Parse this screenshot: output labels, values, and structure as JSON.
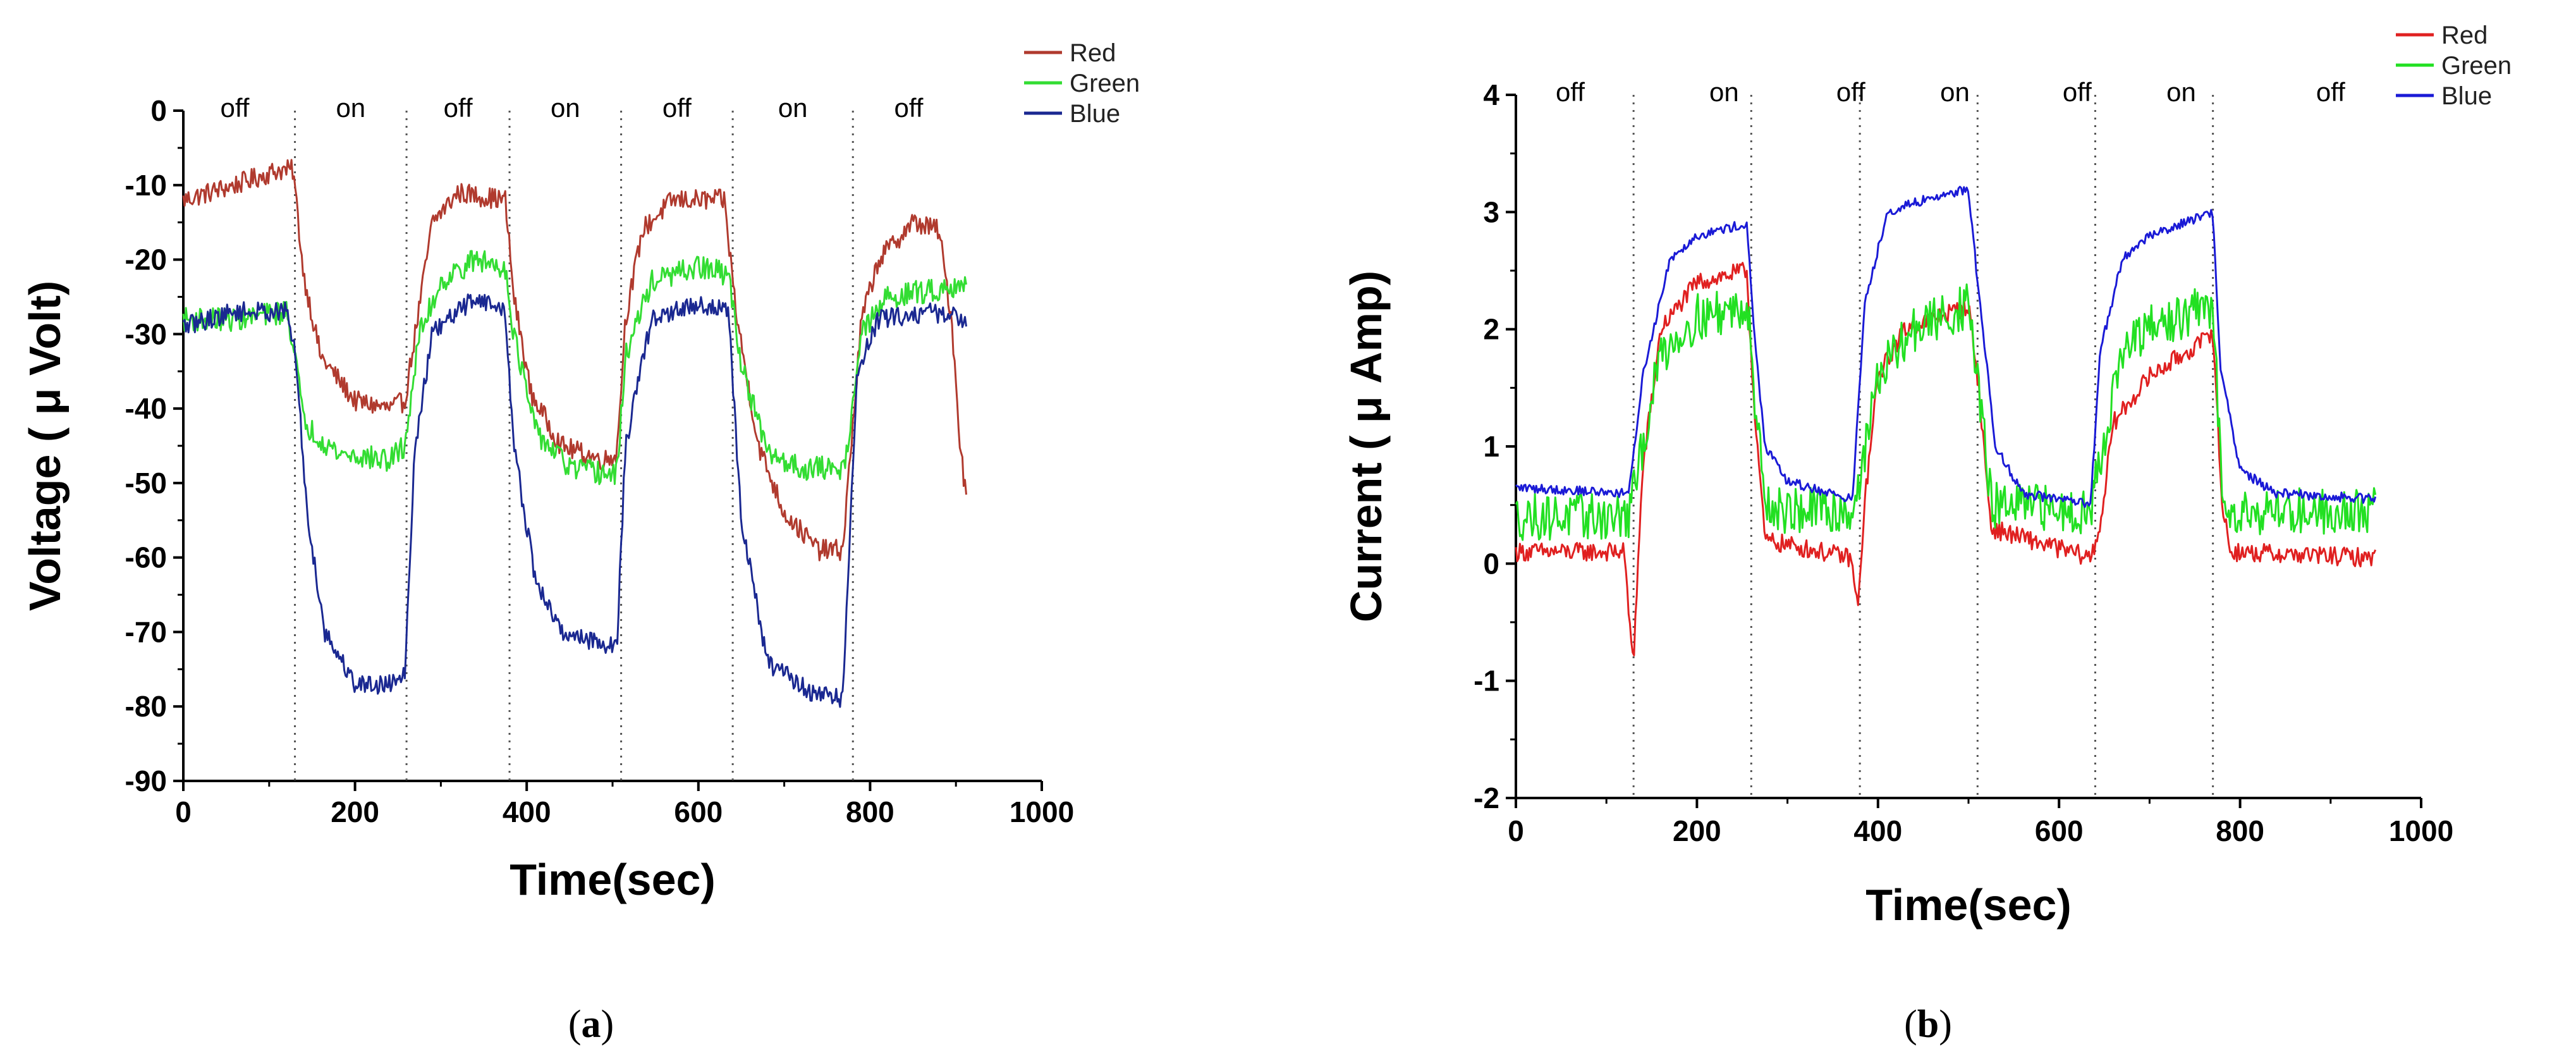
{
  "chart_data": [
    {
      "id": "a",
      "type": "line",
      "caption_letter": "a",
      "xlabel": "Time(sec)",
      "ylabel": "Voltage ( μ Volt)",
      "xlim": [
        0,
        1000
      ],
      "ylim": [
        -90,
        0
      ],
      "xticks": [
        0,
        200,
        400,
        600,
        800,
        1000
      ],
      "yticks": [
        0,
        -10,
        -20,
        -30,
        -40,
        -50,
        -60,
        -70,
        -80,
        -90
      ],
      "state_boundaries": [
        130,
        260,
        380,
        510,
        640,
        780
      ],
      "state_labels": [
        {
          "x": 60,
          "text": "off"
        },
        {
          "x": 195,
          "text": "on"
        },
        {
          "x": 320,
          "text": "off"
        },
        {
          "x": 445,
          "text": "on"
        },
        {
          "x": 575,
          "text": "off"
        },
        {
          "x": 710,
          "text": "on"
        },
        {
          "x": 845,
          "text": "off"
        }
      ],
      "series": [
        {
          "name": "Red",
          "color": "#b03a2e",
          "noise": 1.4,
          "points": [
            [
              0,
              -12
            ],
            [
              60,
              -10
            ],
            [
              110,
              -8
            ],
            [
              128,
              -8
            ],
            [
              140,
              -22
            ],
            [
              160,
              -33
            ],
            [
              200,
              -39
            ],
            [
              240,
              -40
            ],
            [
              258,
              -39
            ],
            [
              270,
              -30
            ],
            [
              290,
              -15
            ],
            [
              320,
              -11
            ],
            [
              375,
              -12
            ],
            [
              385,
              -25
            ],
            [
              405,
              -38
            ],
            [
              440,
              -45
            ],
            [
              490,
              -47
            ],
            [
              505,
              -46
            ],
            [
              515,
              -28
            ],
            [
              535,
              -16
            ],
            [
              570,
              -12
            ],
            [
              630,
              -12
            ],
            [
              645,
              -28
            ],
            [
              670,
              -45
            ],
            [
              700,
              -54
            ],
            [
              740,
              -59
            ],
            [
              768,
              -59
            ],
            [
              790,
              -28
            ],
            [
              810,
              -20
            ],
            [
              850,
              -15
            ],
            [
              880,
              -16
            ],
            [
              895,
              -28
            ],
            [
              905,
              -45
            ],
            [
              912,
              -52
            ]
          ]
        },
        {
          "name": "Green",
          "color": "#33dd33",
          "noise": 1.6,
          "points": [
            [
              0,
              -28
            ],
            [
              60,
              -28
            ],
            [
              120,
              -27
            ],
            [
              130,
              -32
            ],
            [
              140,
              -42
            ],
            [
              180,
              -46
            ],
            [
              240,
              -47
            ],
            [
              258,
              -45
            ],
            [
              275,
              -30
            ],
            [
              300,
              -23
            ],
            [
              340,
              -20
            ],
            [
              375,
              -21
            ],
            [
              385,
              -30
            ],
            [
              410,
              -43
            ],
            [
              450,
              -48
            ],
            [
              505,
              -49
            ],
            [
              515,
              -33
            ],
            [
              545,
              -23
            ],
            [
              600,
              -21
            ],
            [
              635,
              -22
            ],
            [
              650,
              -34
            ],
            [
              680,
              -46
            ],
            [
              720,
              -48
            ],
            [
              770,
              -48
            ],
            [
              790,
              -30
            ],
            [
              820,
              -25
            ],
            [
              880,
              -24
            ],
            [
              912,
              -23
            ]
          ]
        },
        {
          "name": "Blue",
          "color": "#1a2891",
          "noise": 1.3,
          "points": [
            [
              0,
              -29
            ],
            [
              60,
              -27
            ],
            [
              120,
              -27
            ],
            [
              130,
              -32
            ],
            [
              145,
              -55
            ],
            [
              165,
              -70
            ],
            [
              200,
              -77
            ],
            [
              240,
              -77
            ],
            [
              258,
              -75
            ],
            [
              270,
              -45
            ],
            [
              290,
              -30
            ],
            [
              340,
              -25
            ],
            [
              375,
              -27
            ],
            [
              385,
              -45
            ],
            [
              410,
              -63
            ],
            [
              440,
              -70
            ],
            [
              505,
              -72
            ],
            [
              515,
              -45
            ],
            [
              545,
              -28
            ],
            [
              600,
              -26
            ],
            [
              635,
              -27
            ],
            [
              650,
              -55
            ],
            [
              680,
              -74
            ],
            [
              730,
              -78
            ],
            [
              768,
              -79
            ],
            [
              785,
              -35
            ],
            [
              810,
              -28
            ],
            [
              870,
              -27
            ],
            [
              912,
              -28
            ]
          ]
        }
      ]
    },
    {
      "id": "b",
      "type": "line",
      "caption_letter": "b",
      "xlabel": "Time(sec)",
      "ylabel": "Current ( μ Amp)",
      "xlim": [
        0,
        1000
      ],
      "ylim": [
        -2,
        4
      ],
      "xticks": [
        0,
        200,
        400,
        600,
        800,
        1000
      ],
      "yticks": [
        4,
        3,
        2,
        1,
        0,
        -1,
        -2
      ],
      "state_boundaries": [
        130,
        260,
        380,
        510,
        640,
        770
      ],
      "state_labels": [
        {
          "x": 60,
          "text": "off"
        },
        {
          "x": 230,
          "text": "on"
        },
        {
          "x": 370,
          "text": "off"
        },
        {
          "x": 485,
          "text": "on"
        },
        {
          "x": 620,
          "text": "off"
        },
        {
          "x": 735,
          "text": "on"
        },
        {
          "x": 900,
          "text": "off"
        }
      ],
      "series": [
        {
          "name": "Red",
          "color": "#e02020",
          "noise": 0.08,
          "points": [
            [
              0,
              0.1
            ],
            [
              120,
              0.1
            ],
            [
              125,
              -0.5
            ],
            [
              130,
              -0.8
            ],
            [
              140,
              0.8
            ],
            [
              160,
              2.0
            ],
            [
              200,
              2.4
            ],
            [
              255,
              2.5
            ],
            [
              262,
              1.5
            ],
            [
              275,
              0.2
            ],
            [
              370,
              0.05
            ],
            [
              378,
              -0.4
            ],
            [
              385,
              0.5
            ],
            [
              400,
              1.6
            ],
            [
              430,
              2.0
            ],
            [
              500,
              2.2
            ],
            [
              510,
              1.6
            ],
            [
              525,
              0.3
            ],
            [
              635,
              0.05
            ],
            [
              645,
              0.3
            ],
            [
              660,
              1.2
            ],
            [
              700,
              1.6
            ],
            [
              760,
              1.9
            ],
            [
              770,
              2.0
            ],
            [
              780,
              0.5
            ],
            [
              790,
              0.1
            ],
            [
              950,
              0.05
            ]
          ]
        },
        {
          "name": "Green",
          "color": "#22e022",
          "noise": 0.2,
          "points": [
            [
              0,
              0.4
            ],
            [
              125,
              0.4
            ],
            [
              135,
              0.8
            ],
            [
              160,
              1.8
            ],
            [
              200,
              2.1
            ],
            [
              258,
              2.2
            ],
            [
              265,
              1.2
            ],
            [
              280,
              0.45
            ],
            [
              372,
              0.45
            ],
            [
              382,
              0.8
            ],
            [
              400,
              1.6
            ],
            [
              440,
              2.0
            ],
            [
              500,
              2.2
            ],
            [
              510,
              1.6
            ],
            [
              525,
              0.5
            ],
            [
              635,
              0.45
            ],
            [
              645,
              0.9
            ],
            [
              670,
              1.8
            ],
            [
              700,
              2.0
            ],
            [
              770,
              2.2
            ],
            [
              780,
              0.6
            ],
            [
              795,
              0.45
            ],
            [
              950,
              0.45
            ]
          ]
        },
        {
          "name": "Blue",
          "color": "#1a1ad6",
          "noise": 0.04,
          "points": [
            [
              0,
              0.65
            ],
            [
              125,
              0.6
            ],
            [
              140,
              1.6
            ],
            [
              170,
              2.6
            ],
            [
              200,
              2.8
            ],
            [
              255,
              2.9
            ],
            [
              262,
              2.1
            ],
            [
              275,
              1.0
            ],
            [
              300,
              0.7
            ],
            [
              372,
              0.55
            ],
            [
              385,
              2.2
            ],
            [
              410,
              3.0
            ],
            [
              450,
              3.1
            ],
            [
              500,
              3.2
            ],
            [
              510,
              2.4
            ],
            [
              530,
              1.0
            ],
            [
              560,
              0.6
            ],
            [
              635,
              0.5
            ],
            [
              645,
              1.8
            ],
            [
              670,
              2.6
            ],
            [
              700,
              2.8
            ],
            [
              770,
              3.0
            ],
            [
              778,
              1.7
            ],
            [
              800,
              0.8
            ],
            [
              840,
              0.6
            ],
            [
              950,
              0.55
            ]
          ]
        }
      ]
    }
  ]
}
